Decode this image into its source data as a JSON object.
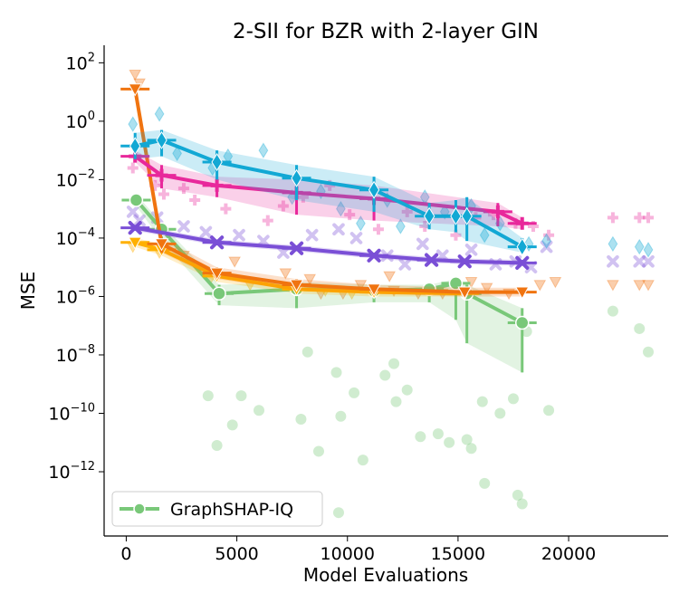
{
  "chart_data": {
    "type": "line",
    "title": "2-SII for BZR with 2-layer GIN",
    "xlabel": "Model Evaluations",
    "ylabel": "MSE",
    "xlim": [
      -1000,
      24500
    ],
    "ylim_log10": [
      -14.2,
      2.6
    ],
    "y_scale": "log",
    "x_ticks": [
      0,
      5000,
      10000,
      15000,
      20000
    ],
    "x_tick_labels": [
      "0",
      "5000",
      "10000",
      "15000",
      "20000"
    ],
    "y_ticks_log10": [
      2,
      0,
      -2,
      -4,
      -6,
      -8,
      -10,
      -12
    ],
    "legend": {
      "placement": "lower-left",
      "entries": [
        "GraphSHAP-IQ"
      ]
    },
    "grid": false,
    "series": [
      {
        "name": "GraphSHAP-IQ",
        "color": "#79c879",
        "marker": "circle",
        "x": [
          450,
          1600,
          4200,
          7700,
          11200,
          13700,
          14900,
          15400,
          17900
        ],
        "y_log10": [
          -2.7,
          -3.7,
          -5.9,
          -5.75,
          -5.8,
          -5.75,
          -5.55,
          -5.9,
          -6.9
        ],
        "band_low_log10": [
          -2.9,
          -4.1,
          -6.3,
          -6.4,
          -6.2,
          -6.2,
          -6.8,
          -7.6,
          -8.6
        ],
        "band_high_log10": [
          -2.5,
          -3.5,
          -5.6,
          -5.5,
          -5.6,
          -5.6,
          -5.4,
          -5.6,
          -6.4
        ],
        "scatter": [
          [
            9500,
            -8.6
          ],
          [
            5200,
            -9.4
          ],
          [
            8200,
            -7.9
          ],
          [
            12100,
            -8.3
          ],
          [
            10300,
            -9.3
          ],
          [
            11700,
            -8.7
          ],
          [
            12200,
            -9.6
          ],
          [
            16100,
            -9.6
          ],
          [
            9700,
            -10.1
          ],
          [
            13300,
            -10.8
          ],
          [
            14100,
            -10.7
          ],
          [
            15600,
            -11.2
          ],
          [
            16900,
            -10.0
          ],
          [
            19100,
            -9.9
          ],
          [
            4100,
            -11.1
          ],
          [
            7900,
            -10.2
          ],
          [
            10700,
            -11.6
          ],
          [
            9600,
            -13.4
          ],
          [
            16200,
            -12.4
          ],
          [
            17700,
            -12.8
          ],
          [
            17900,
            -13.1
          ],
          [
            22000,
            -6.5
          ],
          [
            23200,
            -7.1
          ],
          [
            23600,
            -7.9
          ],
          [
            3700,
            -9.4
          ],
          [
            6000,
            -9.9
          ],
          [
            4800,
            -10.4
          ],
          [
            8700,
            -11.3
          ],
          [
            12700,
            -9.2
          ],
          [
            14600,
            -11.0
          ],
          [
            15400,
            -10.9
          ],
          [
            17500,
            -9.5
          ],
          [
            18100,
            -7.2
          ]
        ]
      },
      {
        "name": "",
        "color": "#f07410",
        "marker": "triangle-down",
        "x": [
          400,
          1600,
          4100,
          7700,
          11200,
          15300,
          17900
        ],
        "y_log10": [
          1.1,
          -4.2,
          -5.2,
          -5.6,
          -5.75,
          -5.85,
          -5.85
        ],
        "band_low_log10": [
          1.0,
          -4.5,
          -5.4,
          -5.8,
          -5.9,
          -6.0,
          -6.0
        ],
        "band_high_log10": [
          1.2,
          -4.0,
          -5.0,
          -5.4,
          -5.6,
          -5.7,
          -5.7
        ],
        "scatter": [
          [
            400,
            1.6
          ],
          [
            600,
            1.3
          ],
          [
            2600,
            -4.6
          ],
          [
            4900,
            -4.8
          ],
          [
            7200,
            -5.2
          ],
          [
            8800,
            -5.9
          ],
          [
            9800,
            -5.9
          ],
          [
            10600,
            -5.6
          ],
          [
            12100,
            -5.8
          ],
          [
            13200,
            -5.9
          ],
          [
            14300,
            -5.9
          ],
          [
            15600,
            -5.5
          ],
          [
            16300,
            -5.7
          ],
          [
            17300,
            -5.9
          ],
          [
            18700,
            -5.6
          ],
          [
            19400,
            -5.5
          ],
          [
            22000,
            -5.6
          ],
          [
            23200,
            -5.6
          ],
          [
            23600,
            -5.6
          ],
          [
            8300,
            -5.4
          ],
          [
            11900,
            -5.3
          ]
        ]
      },
      {
        "name": "",
        "color": "#ffb000",
        "marker": "triangle-down",
        "x": [
          400,
          1600,
          4100,
          7700,
          11200,
          15300
        ],
        "y_log10": [
          -4.15,
          -4.4,
          -5.3,
          -5.75,
          -5.85,
          -5.9
        ],
        "band_low_log10": [
          -4.3,
          -4.6,
          -5.5,
          -5.9,
          -6.0,
          -6.0
        ],
        "band_high_log10": [
          -4.0,
          -4.2,
          -5.1,
          -5.6,
          -5.7,
          -5.8
        ],
        "scatter": [
          [
            300,
            -4.3
          ],
          [
            1500,
            -4.5
          ],
          [
            3800,
            -5.4
          ],
          [
            5600,
            -5.6
          ],
          [
            9000,
            -5.8
          ],
          [
            10200,
            -5.9
          ]
        ]
      },
      {
        "name": "",
        "color": "#7a4fd6",
        "marker": "x",
        "x": [
          400,
          4100,
          7700,
          11200,
          13800,
          15300,
          17900
        ],
        "y_log10": [
          -3.65,
          -4.15,
          -4.35,
          -4.6,
          -4.75,
          -4.8,
          -4.85
        ],
        "band_low_log10": [
          -3.75,
          -4.25,
          -4.45,
          -4.7,
          -4.85,
          -4.9,
          -4.95
        ],
        "band_high_log10": [
          -3.55,
          -4.05,
          -4.25,
          -4.5,
          -4.65,
          -4.7,
          -4.75
        ],
        "scatter": [
          [
            300,
            -3.1
          ],
          [
            600,
            -3.4
          ],
          [
            1400,
            -3.3
          ],
          [
            2600,
            -3.6
          ],
          [
            3600,
            -3.8
          ],
          [
            5100,
            -3.9
          ],
          [
            6200,
            -4.1
          ],
          [
            7100,
            -4.5
          ],
          [
            8400,
            -3.9
          ],
          [
            9600,
            -3.7
          ],
          [
            10400,
            -4.0
          ],
          [
            11800,
            -4.6
          ],
          [
            12600,
            -4.9
          ],
          [
            13400,
            -4.2
          ],
          [
            14300,
            -4.6
          ],
          [
            15600,
            -4.4
          ],
          [
            16700,
            -4.9
          ],
          [
            17600,
            -4.8
          ],
          [
            18300,
            -5.0
          ],
          [
            19000,
            -4.3
          ],
          [
            22000,
            -4.8
          ],
          [
            23200,
            -4.8
          ],
          [
            23600,
            -4.8
          ]
        ]
      },
      {
        "name": "",
        "color": "#e8289b",
        "marker": "plus",
        "x": [
          400,
          1600,
          4100,
          7700,
          11200,
          16800,
          17900
        ],
        "y_log10": [
          -1.2,
          -1.85,
          -2.2,
          -2.45,
          -2.65,
          -3.1,
          -3.5
        ],
        "band_low_log10": [
          -1.4,
          -2.3,
          -2.6,
          -3.2,
          -3.4,
          -3.6,
          -3.7
        ],
        "band_high_log10": [
          -1.0,
          -1.5,
          -1.9,
          -2.0,
          -2.2,
          -2.8,
          -3.3
        ],
        "scatter": [
          [
            300,
            -1.6
          ],
          [
            1300,
            -2.2
          ],
          [
            1700,
            -2.5
          ],
          [
            2600,
            -2.3
          ],
          [
            3100,
            -2.7
          ],
          [
            4500,
            -3.0
          ],
          [
            6400,
            -3.4
          ],
          [
            7100,
            -2.9
          ],
          [
            8000,
            -2.6
          ],
          [
            9200,
            -2.2
          ],
          [
            10100,
            -3.2
          ],
          [
            11400,
            -3.7
          ],
          [
            12700,
            -3.1
          ],
          [
            13500,
            -3.6
          ],
          [
            14900,
            -3.9
          ],
          [
            15800,
            -3.3
          ],
          [
            16600,
            -3.2
          ],
          [
            17600,
            -3.5
          ],
          [
            18400,
            -3.6
          ],
          [
            19100,
            -3.9
          ],
          [
            22000,
            -3.3
          ],
          [
            23200,
            -3.3
          ],
          [
            23600,
            -3.3
          ]
        ]
      },
      {
        "name": "",
        "color": "#12a8d4",
        "marker": "diamond",
        "x": [
          400,
          1600,
          4100,
          7700,
          11200,
          13700,
          14900,
          15400,
          17900
        ],
        "y_log10": [
          -0.85,
          -0.65,
          -1.4,
          -1.95,
          -2.35,
          -3.25,
          -3.25,
          -3.25,
          -4.3
        ],
        "band_low_log10": [
          -1.3,
          -1.2,
          -2.0,
          -2.7,
          -3.1,
          -3.7,
          -3.8,
          -4.1,
          -4.5
        ],
        "band_high_log10": [
          -0.4,
          -0.3,
          -1.0,
          -1.5,
          -1.9,
          -2.8,
          -2.7,
          -2.6,
          -4.0
        ],
        "scatter": [
          [
            300,
            -0.1
          ],
          [
            1500,
            0.25
          ],
          [
            2300,
            -1.1
          ],
          [
            3900,
            -1.6
          ],
          [
            4600,
            -1.2
          ],
          [
            6200,
            -1.0
          ],
          [
            7500,
            -2.6
          ],
          [
            8800,
            -2.4
          ],
          [
            9700,
            -3.0
          ],
          [
            10600,
            -3.5
          ],
          [
            11800,
            -2.7
          ],
          [
            12400,
            -3.6
          ],
          [
            13500,
            -2.6
          ],
          [
            14400,
            -3.1
          ],
          [
            15600,
            -2.9
          ],
          [
            16200,
            -3.9
          ],
          [
            16900,
            -3.5
          ],
          [
            18200,
            -4.2
          ],
          [
            19000,
            -4.1
          ],
          [
            22000,
            -4.2
          ],
          [
            23200,
            -4.3
          ],
          [
            23600,
            -4.4
          ]
        ]
      }
    ]
  }
}
